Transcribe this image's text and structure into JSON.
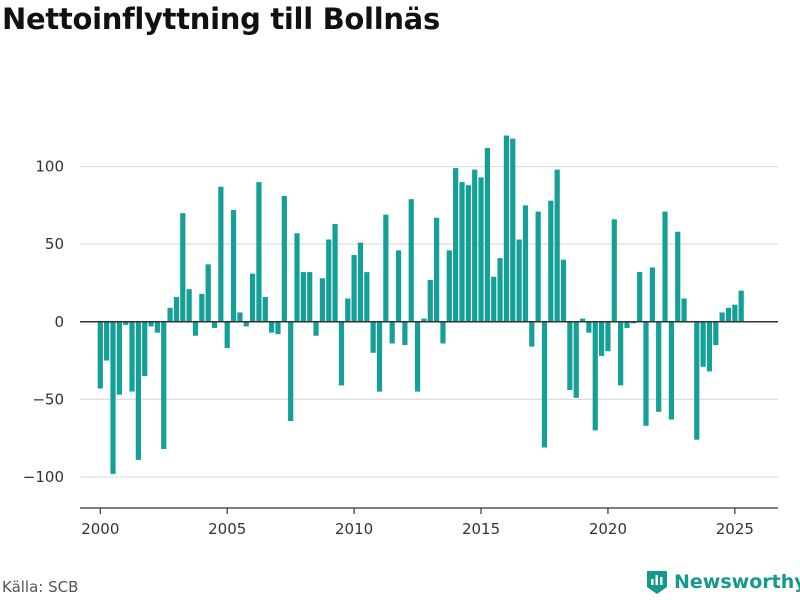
{
  "title": "Nettoinflyttning till Bollnäs",
  "source": "Källa: SCB",
  "brand": {
    "name": "Newsworthy",
    "icon": "bar-chart-logo-icon",
    "color": "#149a8a"
  },
  "colors": {
    "bar": "#14a096",
    "grid": "#dddddd",
    "zero": "#333333",
    "axis": "#333333"
  },
  "chart_data": {
    "type": "bar",
    "title": "Nettoinflyttning till Bollnäs",
    "xlabel": "",
    "ylabel": "",
    "ylim": [
      -120,
      130
    ],
    "xlim": [
      1999.2,
      2026.7
    ],
    "x_ticks": [
      2000,
      2005,
      2010,
      2015,
      2020,
      2025
    ],
    "y_ticks": [
      -100,
      -50,
      0,
      50,
      100
    ],
    "y_tick_labels": [
      "−100",
      "−50",
      "0",
      "50",
      "100"
    ],
    "grid": true,
    "start": "2000-Q1",
    "frequency": "quarterly",
    "values": [
      -43,
      -25,
      -98,
      -47,
      -2,
      -45,
      -89,
      -35,
      -3,
      -7,
      -82,
      9,
      16,
      70,
      21,
      -9,
      18,
      37,
      -4,
      87,
      -17,
      72,
      6,
      -3,
      31,
      90,
      16,
      -7,
      -8,
      81,
      -64,
      57,
      32,
      32,
      -9,
      28,
      53,
      63,
      -41,
      15,
      43,
      51,
      32,
      -20,
      -45,
      69,
      -14,
      46,
      -15,
      79,
      -45,
      2,
      27,
      67,
      -14,
      46,
      99,
      90,
      88,
      98,
      93,
      112,
      29,
      41,
      120,
      118,
      53,
      75,
      -16,
      71,
      -81,
      78,
      98,
      40,
      -44,
      -49,
      2,
      -7,
      -70,
      -22,
      -19,
      66,
      -41,
      -4,
      -1,
      32,
      -67,
      35,
      -58,
      71,
      -63,
      58,
      15,
      0,
      -76,
      -29,
      -32,
      -15,
      6,
      9,
      11,
      20
    ]
  }
}
